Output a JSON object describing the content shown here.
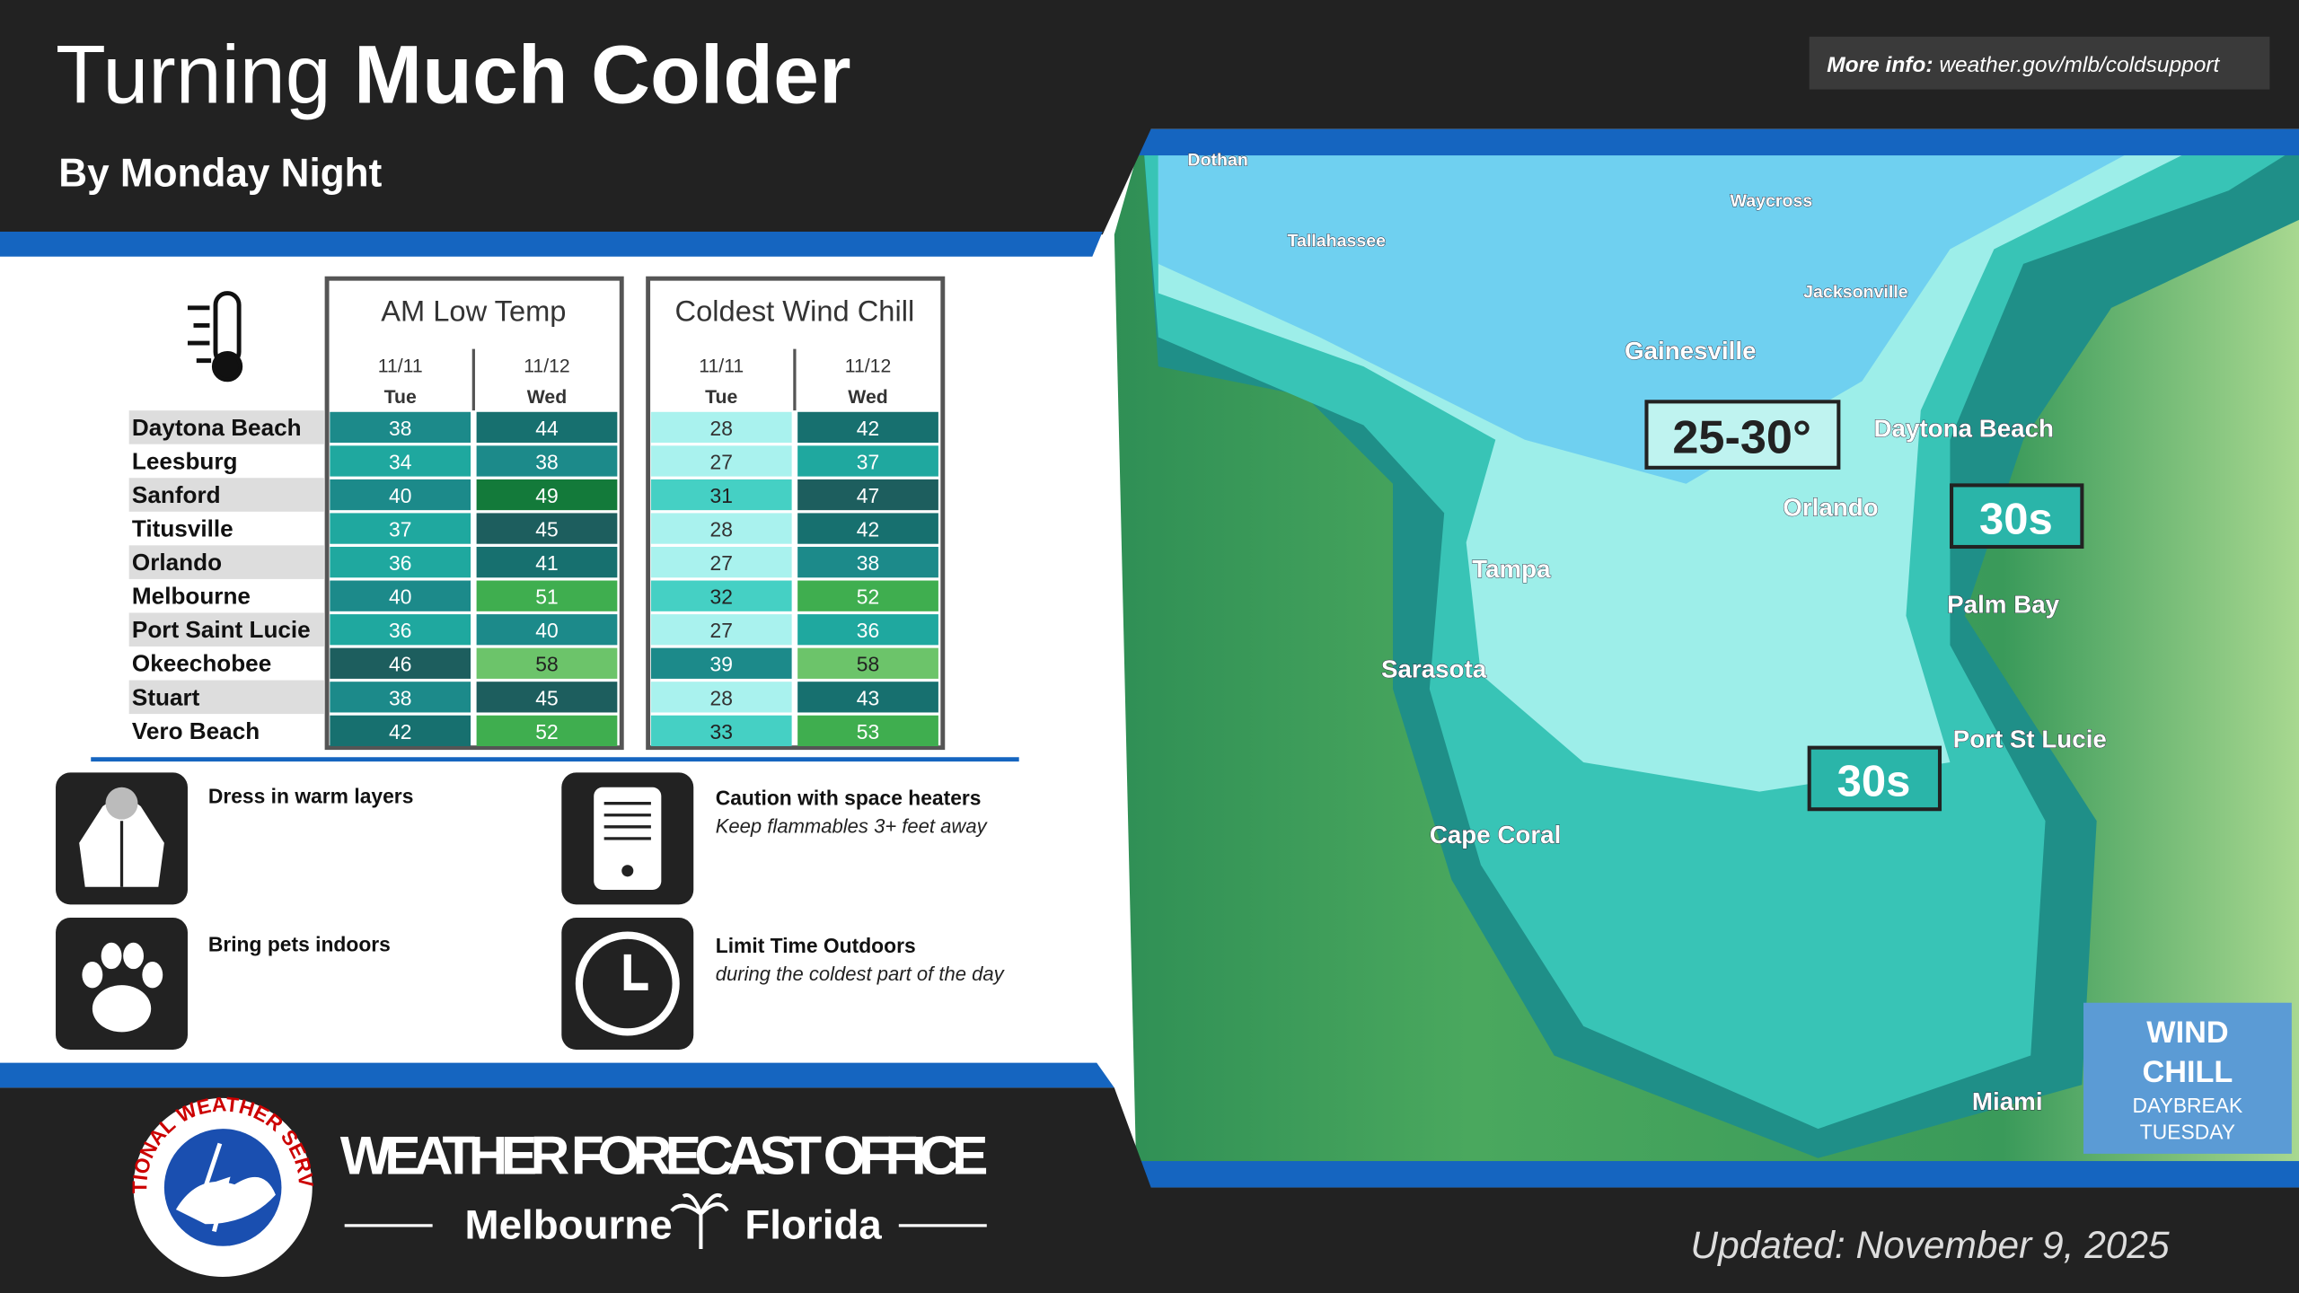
{
  "header": {
    "title_light": "Turning",
    "title_bold": "Much Colder",
    "subtitle": "By Monday Night",
    "more_info_label": "More info:",
    "more_info_url": "weather.gov/mlb/coldsupport"
  },
  "table": {
    "cities": [
      "Daytona Beach",
      "Leesburg",
      "Sanford",
      "Titusville",
      "Orlando",
      "Melbourne",
      "Port Saint Lucie",
      "Okeechobee",
      "Stuart",
      "Vero Beach"
    ],
    "am_low": {
      "title": "AM Low Temp",
      "dates": [
        "11/11",
        "11/12"
      ],
      "days": [
        "Tue",
        "Wed"
      ],
      "values": [
        [
          38,
          44
        ],
        [
          34,
          38
        ],
        [
          40,
          49
        ],
        [
          37,
          45
        ],
        [
          36,
          41
        ],
        [
          40,
          51
        ],
        [
          36,
          40
        ],
        [
          46,
          58
        ],
        [
          38,
          45
        ],
        [
          42,
          52
        ]
      ]
    },
    "wind_chill": {
      "title": "Coldest Wind Chill",
      "dates": [
        "11/11",
        "11/12"
      ],
      "days": [
        "Tue",
        "Wed"
      ],
      "values": [
        [
          28,
          42
        ],
        [
          27,
          37
        ],
        [
          31,
          47
        ],
        [
          28,
          42
        ],
        [
          27,
          38
        ],
        [
          32,
          52
        ],
        [
          27,
          36
        ],
        [
          39,
          58
        ],
        [
          28,
          43
        ],
        [
          33,
          53
        ]
      ]
    }
  },
  "tips": [
    {
      "title": "Dress in warm layers"
    },
    {
      "title": "Caution with space heaters",
      "detail": "Keep flammables 3+ feet away"
    },
    {
      "title": "Bring pets indoors"
    },
    {
      "title": "Limit Time Outdoors",
      "detail": "during the coldest part of the day"
    }
  ],
  "map": {
    "places": [
      "Dothan",
      "Waycross",
      "Tallahassee",
      "Jacksonville",
      "Gainesville",
      "Daytona Beach",
      "Orlando",
      "Tampa",
      "Palm Bay",
      "Sarasota",
      "Port St Lucie",
      "Cape Coral",
      "Miami"
    ],
    "callouts": [
      "25-30°",
      "30s",
      "30s"
    ],
    "legend": {
      "line1": "WIND",
      "line2": "CHILL",
      "line3": "DAYBREAK",
      "line4": "TUESDAY"
    }
  },
  "footer": {
    "logo_text": "NATIONAL WEATHER SERVICE",
    "office": "WEATHER FORECAST OFFICE",
    "city": "Melbourne",
    "state": "Florida",
    "updated": "Updated: November 9, 2025"
  }
}
